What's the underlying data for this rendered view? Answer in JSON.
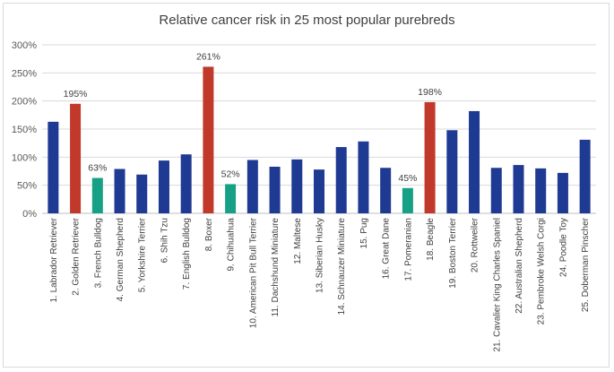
{
  "chart_data": {
    "type": "bar",
    "title": "Relative cancer risk in 25 most popular purebreds",
    "xlabel": "",
    "ylabel": "",
    "ylim": [
      0,
      300
    ],
    "yticks": [
      0,
      50,
      100,
      150,
      200,
      250,
      300
    ],
    "ytick_labels": [
      "0%",
      "50%",
      "100%",
      "150%",
      "200%",
      "250%",
      "300%"
    ],
    "grid": true,
    "legend": "none",
    "categories": [
      "1. Labrador Retriever",
      "2. Golden Retriever",
      "3. French Bulldog",
      "4. German Shepherd",
      "5. Yorkshire Terrier",
      "6. Shih Tzu",
      "7. English Bulldog",
      "8. Boxer",
      "9. Chihuahua",
      "10. American Pit Bull Terrier",
      "11. Dachshund Miniature",
      "12. Maltese",
      "13. Siberian Husky",
      "14. Schnauzer Miniature",
      "15. Pug",
      "16. Great Dane",
      "17. Pomeranian",
      "18. Beagle",
      "19. Boston Terrier",
      "20. Rottweiler",
      "21. Cavalier King Charles Spaniel",
      "22. Australian Shepherd",
      "23. Pembroke Welsh Corgi",
      "24. Poodle Toy",
      "25. Doberman Pinscher"
    ],
    "values": [
      163,
      195,
      63,
      79,
      69,
      94,
      105,
      261,
      52,
      95,
      83,
      96,
      78,
      118,
      128,
      81,
      45,
      198,
      148,
      182,
      81,
      86,
      80,
      72,
      131
    ],
    "colors": [
      "#1f3a93",
      "#c0392b",
      "#16a085",
      "#1f3a93",
      "#1f3a93",
      "#1f3a93",
      "#1f3a93",
      "#c0392b",
      "#16a085",
      "#1f3a93",
      "#1f3a93",
      "#1f3a93",
      "#1f3a93",
      "#1f3a93",
      "#1f3a93",
      "#1f3a93",
      "#16a085",
      "#c0392b",
      "#1f3a93",
      "#1f3a93",
      "#1f3a93",
      "#1f3a93",
      "#1f3a93",
      "#1f3a93",
      "#1f3a93"
    ],
    "data_labels": [
      {
        "index": 1,
        "text": "195%"
      },
      {
        "index": 2,
        "text": "63%"
      },
      {
        "index": 7,
        "text": "261%"
      },
      {
        "index": 8,
        "text": "52%"
      },
      {
        "index": 16,
        "text": "45%"
      },
      {
        "index": 17,
        "text": "198%"
      }
    ]
  }
}
